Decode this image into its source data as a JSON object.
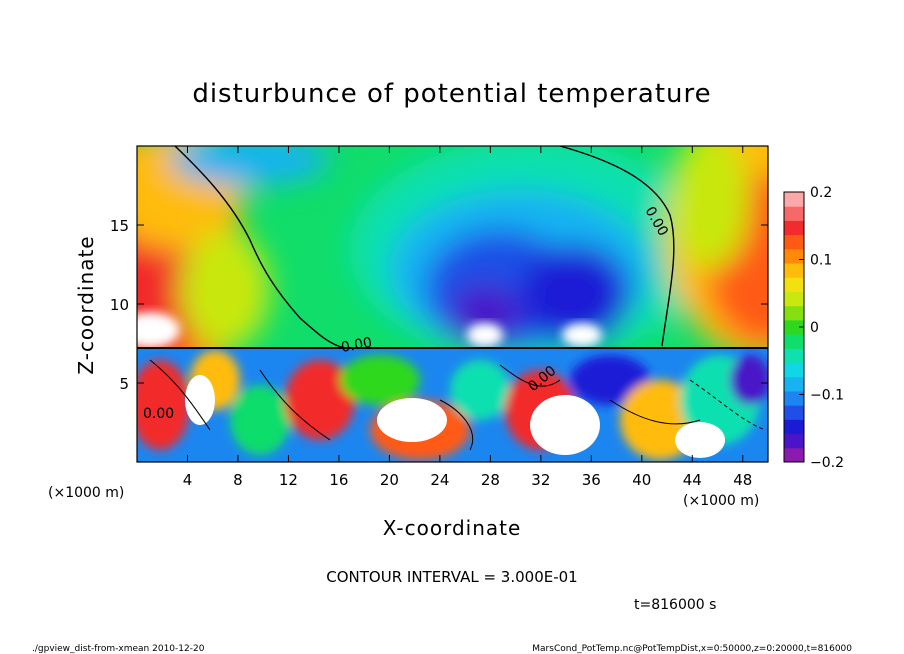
{
  "chart_data": {
    "type": "heatmap",
    "title": "disturbunce of potential temperature",
    "xlabel": "X-coordinate",
    "ylabel": "Z-coordinate",
    "x_unit": "(×1000 m)",
    "y_unit": "(×1000 m)",
    "xlim": [
      0,
      50
    ],
    "ylim": [
      0,
      20
    ],
    "x_ticks": [
      4,
      8,
      12,
      16,
      20,
      24,
      28,
      32,
      36,
      40,
      44,
      48
    ],
    "y_ticks": [
      5,
      10,
      15
    ],
    "colorbar": {
      "min": -0.2,
      "max": 0.2,
      "tick_values": [
        0.2,
        0.1,
        0,
        -0.1,
        -0.2
      ],
      "tick_labels": [
        "0.2",
        "0.1",
        "0",
        "−0.1",
        "−0.2"
      ],
      "colors": [
        "#8c1ab0",
        "#4a14c8",
        "#1b1bd6",
        "#1f4fe6",
        "#1c86f0",
        "#18b2f2",
        "#10d6e8",
        "#10e0b0",
        "#10dd6a",
        "#2ed81e",
        "#86df10",
        "#c8e810",
        "#f2e010",
        "#ffbc0a",
        "#ff8a0a",
        "#ff5a14",
        "#f22c2c",
        "#f76868",
        "#fba8a8"
      ]
    },
    "contours": {
      "labels": [
        "0.00",
        "0.00",
        "0.00",
        "0.00"
      ],
      "interval_text": "CONTOUR INTERVAL = 3.000E-01"
    },
    "grid": false,
    "legend": "colorbar-right"
  },
  "annotations": {
    "time": "t=816000 s",
    "footer_left": "./gpview_dist-from-xmean  2010-12-20",
    "footer_right": "MarsCond_PotTemp.nc@PotTempDist,x=0:50000,z=0:20000,t=816000"
  }
}
